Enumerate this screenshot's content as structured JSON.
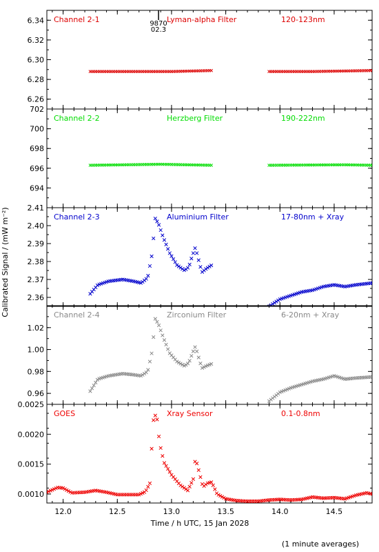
{
  "figure": {
    "ylabel": "Calibrated Signal / (mW m⁻²)",
    "xlabel": "Time / h UTC, 15 Jan 2028",
    "footnote": "(1 minute averages)",
    "marker_top": "9870",
    "marker_bottom": "02.3"
  },
  "chart_data": [
    {
      "type": "scatter",
      "channel": "Channel 2-1",
      "filter": "Lyman-alpha Filter",
      "band": "120-123nm",
      "color": "#dd0000",
      "ylim": [
        6.25,
        6.35
      ],
      "yticks": [
        "6.26",
        "6.28",
        "6.30",
        "6.32",
        "6.34"
      ],
      "xlim": [
        11.85,
        14.85
      ],
      "segments": [
        {
          "x": [
            12.25,
            13.0,
            13.37
          ],
          "y": [
            6.288,
            6.288,
            6.289
          ]
        },
        {
          "x": [
            13.9,
            14.3,
            14.85
          ],
          "y": [
            6.288,
            6.288,
            6.289
          ]
        }
      ]
    },
    {
      "type": "scatter",
      "channel": "Channel 2-2",
      "filter": "Herzberg Filter",
      "band": "190-222nm",
      "color": "#00dd00",
      "ylim": [
        692,
        702
      ],
      "yticks": [
        "694",
        "696",
        "698",
        "700",
        "702"
      ],
      "xlim": [
        11.85,
        14.85
      ],
      "segments": [
        {
          "x": [
            12.25,
            12.9,
            13.37
          ],
          "y": [
            696.3,
            696.4,
            696.3
          ]
        },
        {
          "x": [
            13.9,
            14.6,
            14.85
          ],
          "y": [
            696.3,
            696.35,
            696.3
          ]
        }
      ]
    },
    {
      "type": "scatter",
      "channel": "Channel 2-3",
      "filter": "Aluminium Filter",
      "band": "17-80nm + Xray",
      "color": "#0000cc",
      "ylim": [
        2.355,
        2.41
      ],
      "yticks": [
        "2.36",
        "2.37",
        "2.38",
        "2.39",
        "2.40",
        "2.41"
      ],
      "xlim": [
        11.85,
        14.85
      ],
      "segments": [
        {
          "x": [
            12.25,
            12.32,
            12.42,
            12.55,
            12.65,
            12.72,
            12.78,
            12.82,
            12.85,
            12.88,
            12.92,
            12.98,
            13.05,
            13.12,
            13.16,
            13.19,
            13.22,
            13.24,
            13.28,
            13.32,
            13.37
          ],
          "y": [
            2.362,
            2.367,
            2.369,
            2.37,
            2.369,
            2.368,
            2.371,
            2.384,
            2.404,
            2.401,
            2.394,
            2.385,
            2.378,
            2.375,
            2.377,
            2.383,
            2.388,
            2.383,
            2.374,
            2.376,
            2.378
          ]
        },
        {
          "x": [
            13.9,
            14.0,
            14.1,
            14.2,
            14.3,
            14.4,
            14.5,
            14.6,
            14.7,
            14.85
          ],
          "y": [
            2.355,
            2.359,
            2.361,
            2.363,
            2.364,
            2.366,
            2.367,
            2.366,
            2.367,
            2.368
          ]
        }
      ]
    },
    {
      "type": "scatter",
      "channel": "Channel 2-4",
      "filter": "Zirconium Filter",
      "band": "6-20nm + Xray",
      "color": "#888888",
      "ylim": [
        0.95,
        1.04
      ],
      "yticks": [
        "0.96",
        "0.98",
        "1.00",
        "1.02"
      ],
      "xlim": [
        11.85,
        14.85
      ],
      "segments": [
        {
          "x": [
            12.25,
            12.32,
            12.42,
            12.55,
            12.65,
            12.72,
            12.78,
            12.82,
            12.85,
            12.88,
            12.92,
            12.98,
            13.05,
            13.12,
            13.16,
            13.19,
            13.22,
            13.24,
            13.28,
            13.32,
            13.37
          ],
          "y": [
            0.962,
            0.973,
            0.976,
            0.978,
            0.977,
            0.976,
            0.98,
            0.998,
            1.028,
            1.023,
            1.012,
            0.997,
            0.989,
            0.985,
            0.988,
            0.996,
            1.003,
            0.996,
            0.983,
            0.985,
            0.987
          ]
        },
        {
          "x": [
            13.9,
            14.0,
            14.1,
            14.2,
            14.3,
            14.4,
            14.5,
            14.6,
            14.7,
            14.85
          ],
          "y": [
            0.953,
            0.961,
            0.965,
            0.968,
            0.971,
            0.973,
            0.976,
            0.973,
            0.974,
            0.975
          ]
        }
      ]
    },
    {
      "type": "scatter",
      "channel": "GOES",
      "filter": "Xray Sensor",
      "band": "0.1-0.8nm",
      "color": "#ee0000",
      "ylim": [
        0.00085,
        0.0025
      ],
      "yticks": [
        "0.0010",
        "0.0015",
        "0.0020",
        "0.0025"
      ],
      "xlim": [
        11.85,
        14.85
      ],
      "segments": [
        {
          "x": [
            11.85,
            11.95,
            12.0,
            12.08,
            12.2,
            12.3,
            12.4,
            12.5,
            12.6,
            12.7,
            12.76,
            12.8,
            12.83,
            12.86,
            12.89,
            12.93,
            13.0,
            13.08,
            13.15,
            13.2,
            13.22,
            13.25,
            13.29,
            13.33,
            13.37,
            13.42,
            13.5,
            13.6,
            13.7,
            13.8,
            13.9,
            14.0,
            14.1,
            14.2,
            14.3,
            14.4,
            14.5,
            14.6,
            14.7,
            14.8,
            14.85
          ],
          "y": [
            0.00103,
            0.00111,
            0.0011,
            0.00102,
            0.00103,
            0.00106,
            0.00103,
            0.00099,
            0.00099,
            0.00099,
            0.00104,
            0.00118,
            0.00222,
            0.00236,
            0.00185,
            0.00153,
            0.00132,
            0.00115,
            0.00106,
            0.00125,
            0.0016,
            0.0014,
            0.00112,
            0.00118,
            0.0012,
            0.001,
            0.00092,
            0.00089,
            0.00088,
            0.00088,
            0.0009,
            0.00091,
            0.0009,
            0.00091,
            0.00095,
            0.00093,
            0.00094,
            0.00092,
            0.00098,
            0.00102,
            0.001
          ]
        }
      ]
    }
  ],
  "xaxis": {
    "ticks": [
      12.0,
      12.5,
      13.0,
      13.5,
      14.0,
      14.5
    ],
    "labels": [
      "12.0",
      "12.5",
      "13.0",
      "13.5",
      "14.0",
      "14.5"
    ],
    "marker_x": 12.88
  }
}
